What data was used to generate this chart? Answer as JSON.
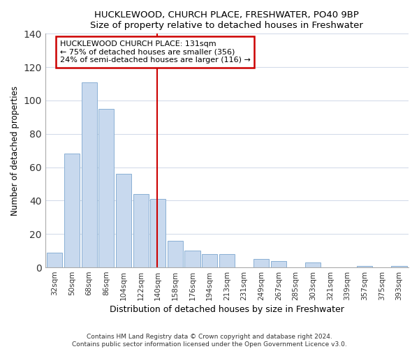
{
  "title": "HUCKLEWOOD, CHURCH PLACE, FRESHWATER, PO40 9BP",
  "subtitle": "Size of property relative to detached houses in Freshwater",
  "xlabel": "Distribution of detached houses by size in Freshwater",
  "ylabel": "Number of detached properties",
  "bar_labels": [
    "32sqm",
    "50sqm",
    "68sqm",
    "86sqm",
    "104sqm",
    "122sqm",
    "140sqm",
    "158sqm",
    "176sqm",
    "194sqm",
    "213sqm",
    "231sqm",
    "249sqm",
    "267sqm",
    "285sqm",
    "303sqm",
    "321sqm",
    "339sqm",
    "357sqm",
    "375sqm",
    "393sqm"
  ],
  "bar_values": [
    9,
    68,
    111,
    95,
    56,
    44,
    41,
    16,
    10,
    8,
    8,
    0,
    5,
    4,
    0,
    3,
    0,
    0,
    1,
    0,
    1
  ],
  "bar_color": "#c8d9ee",
  "bar_edge_color": "#8ab0d4",
  "vline_color": "#cc0000",
  "annotation_title": "HUCKLEWOOD CHURCH PLACE: 131sqm",
  "annotation_line1": "← 75% of detached houses are smaller (356)",
  "annotation_line2": "24% of semi-detached houses are larger (116) →",
  "annotation_box_color": "#ffffff",
  "annotation_box_edge": "#cc0000",
  "ylim": [
    0,
    140
  ],
  "footer1": "Contains HM Land Registry data © Crown copyright and database right 2024.",
  "footer2": "Contains public sector information licensed under the Open Government Licence v3.0."
}
